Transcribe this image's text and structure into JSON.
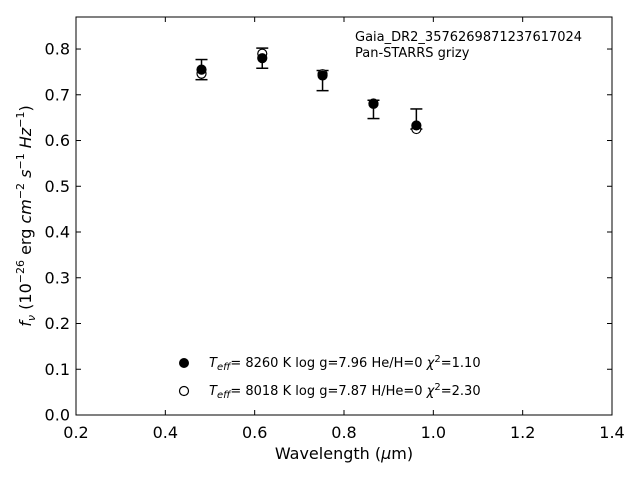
{
  "chart_data": {
    "type": "scatter",
    "title": "",
    "annotation": [
      "Gaia_DR2_3576269871237617024",
      "Pan-STARRS grizy"
    ],
    "xlabel": "Wavelength (µm)",
    "ylabel": "f_ν (10^-26 erg cm^-2 s^-1 Hz^-1)",
    "xlim": [
      0.2,
      1.4
    ],
    "ylim": [
      0.0,
      0.87
    ],
    "xticks": [
      0.2,
      0.4,
      0.6,
      0.8,
      1.0,
      1.2,
      1.4
    ],
    "xtick_labels": [
      "0.2",
      "0.4",
      "0.6",
      "0.8",
      "1.0",
      "1.2",
      "1.4"
    ],
    "yticks": [
      0.0,
      0.1,
      0.2,
      0.3,
      0.4,
      0.5,
      0.6,
      0.7,
      0.8
    ],
    "ytick_labels": [
      "0.0",
      "0.1",
      "0.2",
      "0.3",
      "0.4",
      "0.5",
      "0.6",
      "0.7",
      "0.8"
    ],
    "grid": false,
    "legend_position": "bottom-center",
    "observed": {
      "x": [
        0.481,
        0.617,
        0.752,
        0.866,
        0.962
      ],
      "y": [
        0.755,
        0.78,
        0.731,
        0.668,
        0.647
      ],
      "yerr_low": [
        0.022,
        0.022,
        0.022,
        0.02,
        0.022
      ],
      "yerr_high": [
        0.022,
        0.022,
        0.022,
        0.02,
        0.022
      ]
    },
    "series": [
      {
        "marker": "filled-circle",
        "legend": {
          "teff": "8260 K",
          "logg": "log g=7.96",
          "comp": "He/H=0",
          "chi2": "=1.10"
        },
        "x": [
          0.481,
          0.617,
          0.752,
          0.866,
          0.962
        ],
        "y": [
          0.755,
          0.78,
          0.742,
          0.681,
          0.633
        ]
      },
      {
        "marker": "open-circle",
        "legend": {
          "teff": "8018 K",
          "logg": "log g=7.87",
          "comp": "H/He=0",
          "chi2": "=2.30"
        },
        "x": [
          0.481,
          0.617,
          0.752,
          0.866,
          0.962
        ],
        "y": [
          0.746,
          0.79,
          0.745,
          0.68,
          0.625
        ]
      }
    ]
  }
}
